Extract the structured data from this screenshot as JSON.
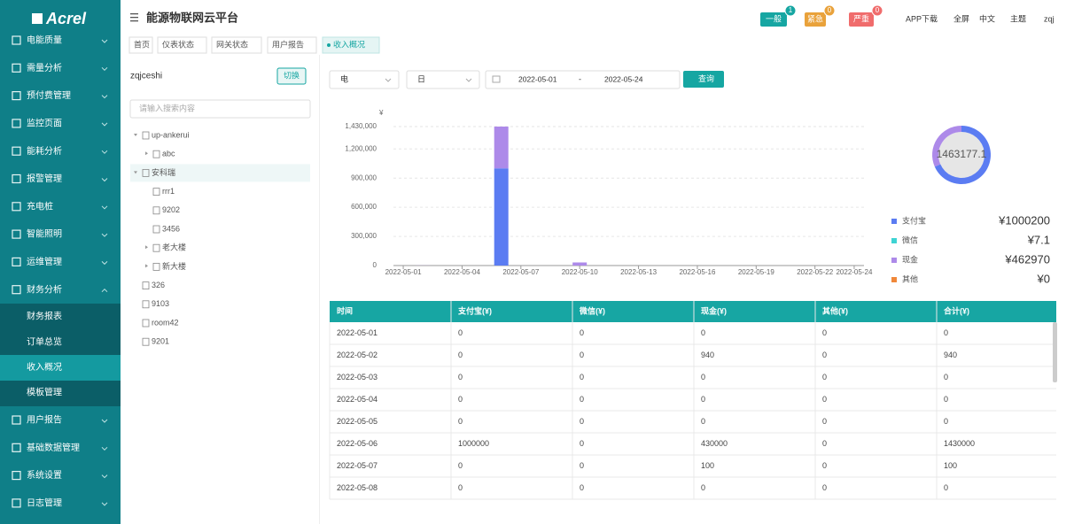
{
  "sidebar": {
    "logo": "Acrel",
    "menu": [
      "电能质量",
      "需量分析",
      "预付费管理",
      "监控页面",
      "能耗分析",
      "报警管理",
      "充电桩",
      "智能照明",
      "运维管理",
      "财务分析",
      "用户报告",
      "基础数据管理",
      "系统设置",
      "日志管理"
    ],
    "submenu": [
      "财务报表",
      "订单总览",
      "收入概况",
      "模板管理"
    ]
  },
  "header": {
    "title": "能源物联网云平台",
    "alerts": [
      {
        "label": "一般",
        "count": 1
      },
      {
        "label": "紧急",
        "count": 0
      },
      {
        "label": "严重",
        "count": 0
      }
    ],
    "links": [
      "APP下载",
      "全屏",
      "中文",
      "主题",
      "zqj"
    ]
  },
  "tabs": [
    "首页",
    "仪表状态",
    "网关状态",
    "用户报告",
    "收入概况"
  ],
  "tree": {
    "user": "zqjceshi",
    "switch": "切换",
    "search_placeholder": "请输入搜索内容",
    "nodes": [
      {
        "label": "up-ankerui",
        "children": [
          {
            "label": "abc",
            "children": []
          }
        ]
      },
      {
        "label": "安科瑞",
        "children": [
          {
            "label": "rrr1"
          },
          {
            "label": "9202"
          },
          {
            "label": "3456"
          },
          {
            "label": "老大楼",
            "children": []
          },
          {
            "label": "新大楼",
            "children": []
          }
        ]
      },
      {
        "label": "326"
      },
      {
        "label": "9103"
      },
      {
        "label": "room42"
      },
      {
        "label": "9201"
      }
    ]
  },
  "filters": {
    "energy": "电",
    "period": "日",
    "start": "2022-05-01",
    "separator": "-",
    "end": "2022-05-24",
    "query": "查询"
  },
  "chart_data": [
    {
      "type": "bar",
      "stacked": true,
      "y_label": "¥",
      "grid": true,
      "categories": [
        "2022-05-01",
        null,
        null,
        "2022-05-04",
        null,
        null,
        "2022-05-07",
        null,
        null,
        "2022-05-10",
        null,
        null,
        "2022-05-13",
        null,
        null,
        "2022-05-16",
        null,
        null,
        "2022-05-19",
        null,
        null,
        "2022-05-22",
        null,
        "2022-05-24"
      ],
      "series": [
        {
          "color": "#5b7cf2",
          "values": [
            0,
            0,
            0,
            0,
            0,
            1000000,
            0,
            0,
            0,
            0,
            0,
            0,
            0,
            0,
            0,
            0,
            0,
            0,
            0,
            0,
            0,
            0,
            0,
            0
          ]
        },
        {
          "color": "#ad8ae9",
          "values": [
            0,
            940,
            0,
            0,
            0,
            430000,
            100,
            0,
            0,
            31930,
            0,
            0,
            0,
            0,
            0,
            0,
            0,
            0,
            0,
            0,
            0,
            0,
            0,
            0
          ]
        }
      ],
      "ylim": [
        0,
        1430000
      ],
      "yticks": [
        0,
        {
          "value": 300000,
          "label": "300,000"
        },
        {
          "value": 600000,
          "label": "600,000"
        },
        {
          "value": 900000,
          "label": "900,000"
        },
        {
          "value": 1200000,
          "label": "1,200,000"
        },
        {
          "value": 1430000,
          "label": "1,430,000"
        }
      ]
    },
    {
      "type": "pie",
      "donut": true,
      "total": 1463177.1,
      "categories": [
        "支付宝",
        "微信",
        "现金",
        "其他"
      ],
      "values": [
        1000200,
        7.1,
        462970,
        0
      ],
      "value_labels": [
        "¥1000200",
        "¥7.1",
        "¥462970",
        "¥0"
      ],
      "colors": [
        "#5b7cf2",
        "#3ed3d3",
        "#ad8ae9",
        "#f0883a"
      ]
    }
  ],
  "table": {
    "columns": [
      "时间",
      "支付宝(¥)",
      "微信(¥)",
      "现金(¥)",
      "其他(¥)",
      "合计(¥)"
    ],
    "rows": [
      [
        "2022-05-01",
        0,
        0,
        0,
        0,
        0
      ],
      [
        "2022-05-02",
        0,
        0,
        940,
        0,
        940
      ],
      [
        "2022-05-03",
        0,
        0,
        0,
        0,
        0
      ],
      [
        "2022-05-04",
        0,
        0,
        0,
        0,
        0
      ],
      [
        "2022-05-05",
        0,
        0,
        0,
        0,
        0
      ],
      [
        "2022-05-06",
        1000000,
        0,
        430000,
        0,
        1430000
      ],
      [
        "2022-05-07",
        0,
        0,
        100,
        0,
        100
      ],
      [
        "2022-05-08",
        0,
        0,
        0,
        0,
        0
      ]
    ]
  }
}
